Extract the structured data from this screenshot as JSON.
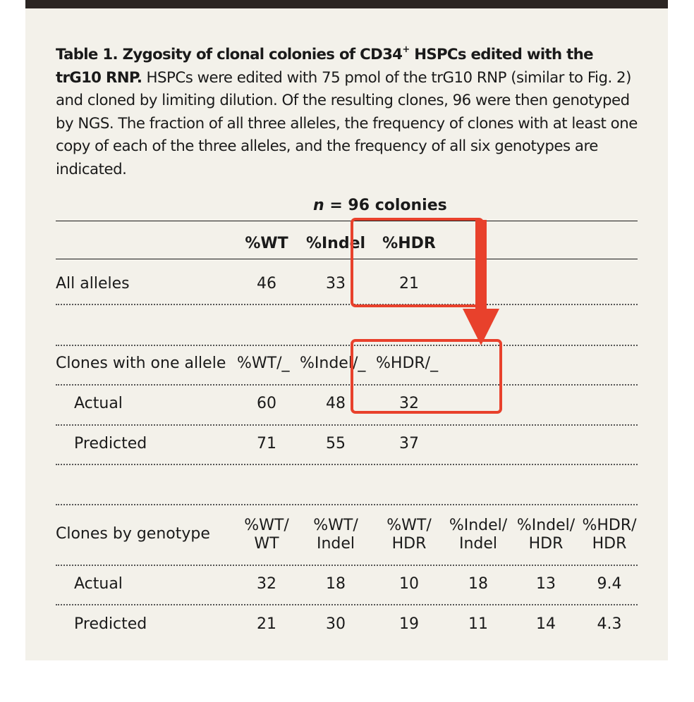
{
  "caption": {
    "label": "Table 1.",
    "title_part1": "Zygosity of clonal colonies of CD34",
    "title_sup": "+",
    "title_part2": " HSPCs edited with the trG10 RNP.",
    "body": " HSPCs were edited with 75 pmol of the trG10 RNP (similar to Fig. 2) and cloned by limiting dilution. Of the resulting clones, 96 were then genotyped by NGS. The fraction of all three alleles, the frequency of clones with at least one copy of each of the three alleles, and the frequency of all six genotypes are indicated."
  },
  "table": {
    "n_label_italic": "n",
    "n_label_rest": " = 96 colonies",
    "section1": {
      "headers": [
        "%WT",
        "%Indel",
        "%HDR"
      ],
      "row": {
        "label": "All alleles",
        "values": [
          "46",
          "33",
          "21"
        ]
      }
    },
    "section2": {
      "label": "Clones with one allele",
      "headers": [
        "%WT/_",
        "%Indel/_",
        "%HDR/_"
      ],
      "rows": [
        {
          "label": "Actual",
          "values": [
            "60",
            "48",
            "32"
          ]
        },
        {
          "label": "Predicted",
          "values": [
            "71",
            "55",
            "37"
          ]
        }
      ]
    },
    "section3": {
      "label": "Clones by genotype",
      "headers": [
        {
          "l1": "%WT/",
          "l2": "WT"
        },
        {
          "l1": "%WT/",
          "l2": "Indel"
        },
        {
          "l1": "%WT/",
          "l2": "HDR"
        },
        {
          "l1": "%Indel/",
          "l2": "Indel"
        },
        {
          "l1": "%Indel/",
          "l2": "HDR"
        },
        {
          "l1": "%HDR/",
          "l2": "HDR"
        }
      ],
      "rows": [
        {
          "label": "Actual",
          "values": [
            "32",
            "18",
            "10",
            "18",
            "13",
            "9.4"
          ]
        },
        {
          "label": "Predicted",
          "values": [
            "21",
            "30",
            "19",
            "11",
            "14",
            "4.3"
          ]
        }
      ]
    }
  },
  "annotation": {
    "color": "#e8412c"
  }
}
